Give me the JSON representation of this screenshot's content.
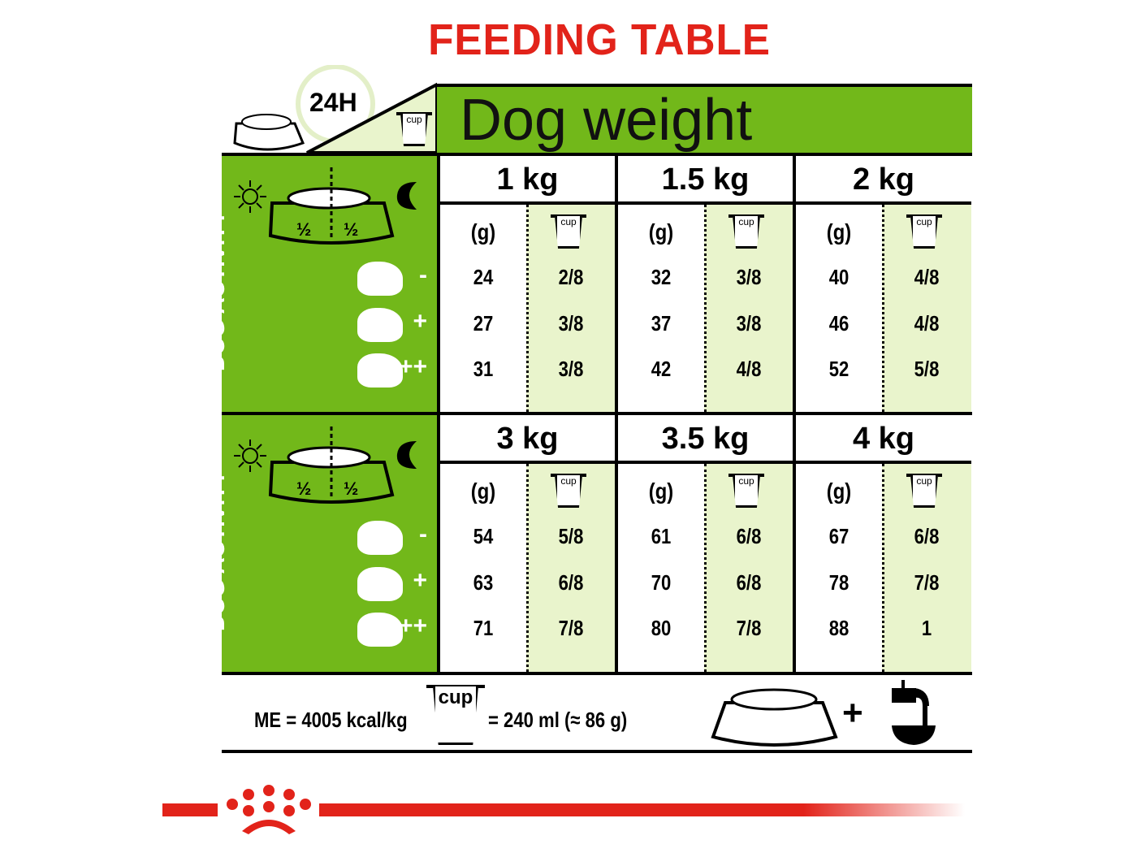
{
  "title": "FEEDING TABLE",
  "header": {
    "duration": "24H",
    "cup_label": "cup",
    "banner": "Dog weight"
  },
  "side_panel": {
    "label": "DOG ACTIVITY",
    "half_left": "½",
    "half_right": "½",
    "activity_levels": [
      "-",
      "+",
      "++"
    ],
    "icons": [
      "sun-icon",
      "moon-icon",
      "food-bowl-icon",
      "dog-resting-icon",
      "dog-standing-icon",
      "dog-running-icon"
    ]
  },
  "column_headers": {
    "grams": "(g)",
    "cup": "cup"
  },
  "sections": [
    {
      "weights": [
        {
          "label": "1 kg",
          "grams": [
            "24",
            "27",
            "31"
          ],
          "cups": [
            "2/8",
            "3/8",
            "3/8"
          ]
        },
        {
          "label": "1.5 kg",
          "grams": [
            "32",
            "37",
            "42"
          ],
          "cups": [
            "3/8",
            "3/8",
            "4/8"
          ]
        },
        {
          "label": "2 kg",
          "grams": [
            "40",
            "46",
            "52"
          ],
          "cups": [
            "4/8",
            "4/8",
            "5/8"
          ]
        }
      ]
    },
    {
      "weights": [
        {
          "label": "3 kg",
          "grams": [
            "54",
            "63",
            "71"
          ],
          "cups": [
            "5/8",
            "6/8",
            "7/8"
          ]
        },
        {
          "label": "3.5 kg",
          "grams": [
            "61",
            "70",
            "80"
          ],
          "cups": [
            "6/8",
            "6/8",
            "7/8"
          ]
        },
        {
          "label": "4 kg",
          "grams": [
            "67",
            "78",
            "88"
          ],
          "cups": [
            "6/8",
            "7/8",
            "1"
          ]
        }
      ]
    }
  ],
  "footer": {
    "energy": "ME = 4005 kcal/kg",
    "cup_label": "cup",
    "cup_equivalence": "= 240 ml (≈ 86 g)",
    "plus": "+",
    "icons": [
      "food-bowl-icon",
      "water-tap-icon"
    ]
  },
  "colors": {
    "title_red": "#e2231a",
    "green": "#72b81a",
    "light_green": "#e9f4cc",
    "brand_red": "#e2231a"
  }
}
